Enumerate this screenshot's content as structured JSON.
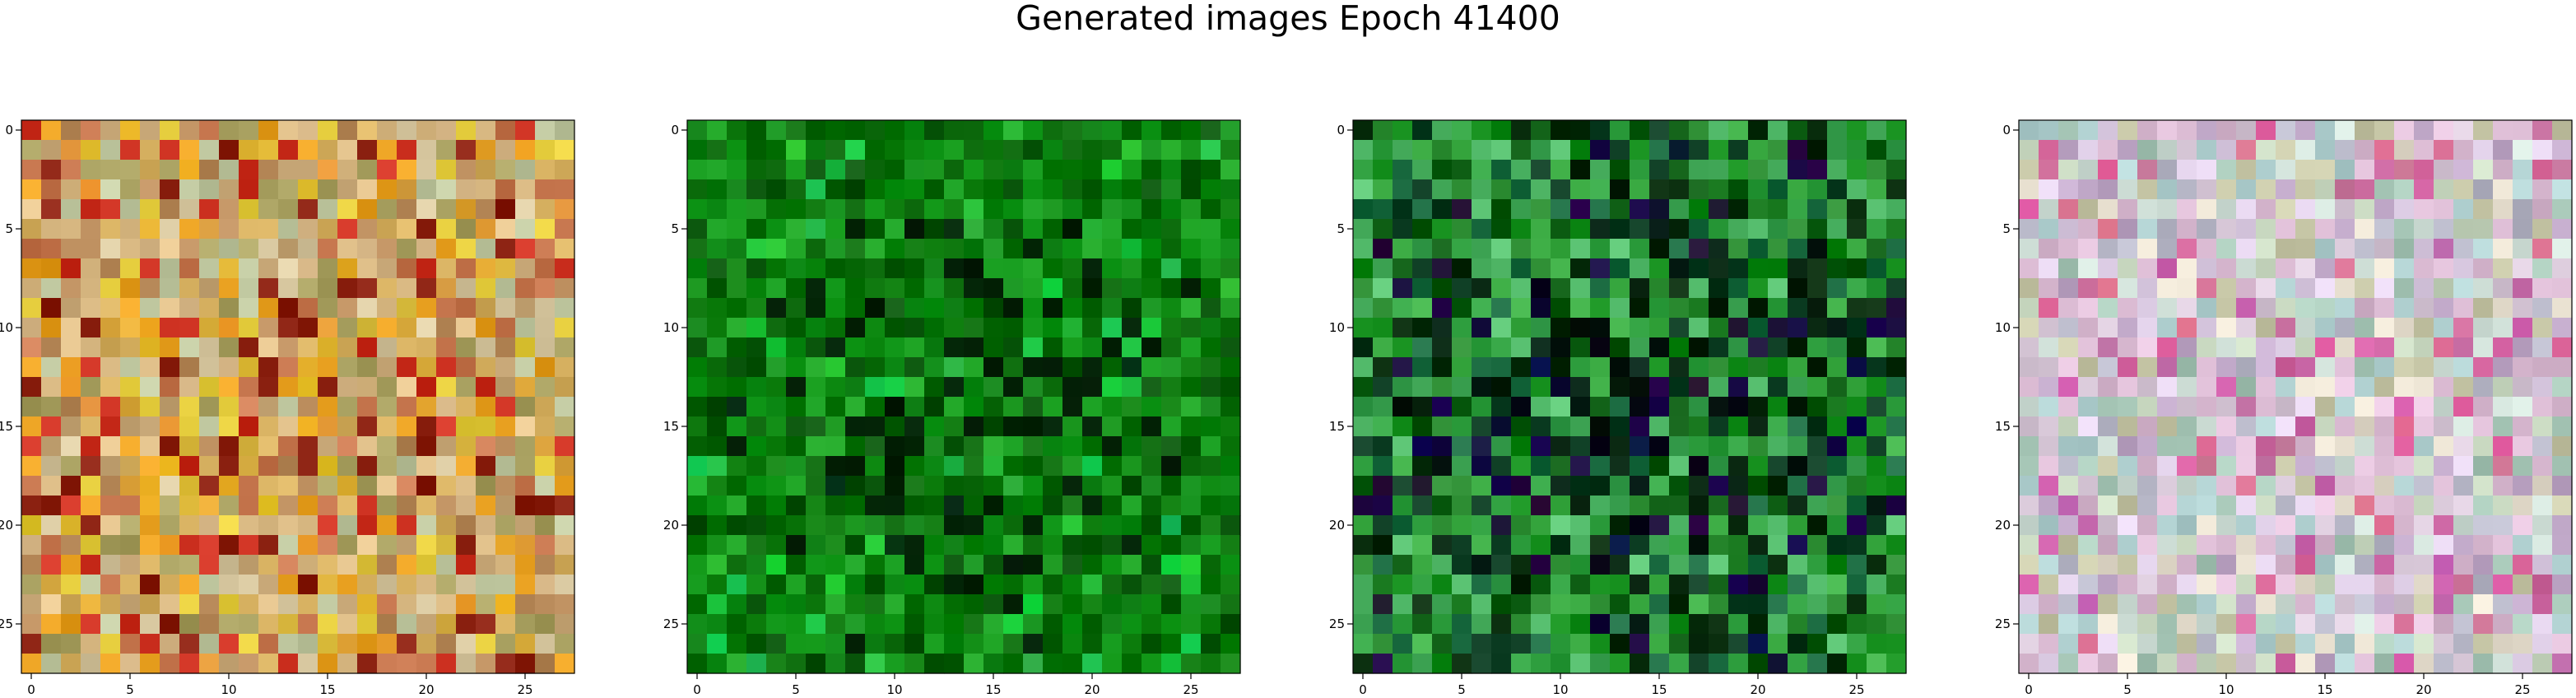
{
  "figure": {
    "title": "Generated images Epoch 41400"
  },
  "chart_data": [
    {
      "type": "heatmap",
      "description_kind": "rgb-image",
      "grid": 28,
      "xlim": [
        -0.5,
        27.5
      ],
      "ylim": [
        27.5,
        -0.5
      ],
      "xticks": [
        0,
        5,
        10,
        15,
        20,
        25
      ],
      "yticks": [
        0,
        5,
        10,
        15,
        20,
        25
      ],
      "palette": [
        "#c8a878",
        "#e0c08a",
        "#b88a5a",
        "#d6b060",
        "#e8a020",
        "#c87850",
        "#d8c8a0",
        "#a8a060",
        "#cc3020",
        "#8a2010",
        "#e8d040",
        "#c0c8a0"
      ],
      "accent": "#e0a830"
    },
    {
      "type": "heatmap",
      "description_kind": "rgb-image",
      "grid": 28,
      "xlim": [
        -0.5,
        27.5
      ],
      "ylim": [
        27.5,
        -0.5
      ],
      "xticks": [
        0,
        5,
        10,
        15,
        20,
        25
      ],
      "yticks": [
        0,
        5,
        10,
        15,
        20,
        25
      ],
      "palette": [
        "#0a7a10",
        "#0e8a12",
        "#067006",
        "#108c18",
        "#046004",
        "#0a6a0a",
        "#149a1c",
        "#0c7c0c",
        "#08540a",
        "#1aa020"
      ],
      "accent": "#20c040"
    },
    {
      "type": "heatmap",
      "description_kind": "rgb-image",
      "grid": 28,
      "xlim": [
        -0.5,
        27.5
      ],
      "ylim": [
        27.5,
        -0.5
      ],
      "xticks": [
        0,
        5,
        10,
        15,
        20,
        25
      ],
      "yticks": [
        0,
        5,
        10,
        15,
        20,
        25
      ],
      "palette": [
        "#2a8a30",
        "#40b048",
        "#108a18",
        "#0a5a10",
        "#062a0a",
        "#58c070",
        "#1a6a40",
        "#30a040",
        "#0a3a20",
        "#3aa050"
      ],
      "accent": "#1a0a40"
    },
    {
      "type": "heatmap",
      "description_kind": "rgb-image",
      "grid": 28,
      "xlim": [
        -0.5,
        27.5
      ],
      "ylim": [
        27.5,
        -0.5
      ],
      "xticks": [
        0,
        5,
        10,
        15,
        20,
        25
      ],
      "yticks": [
        0,
        5,
        10,
        15,
        20,
        25
      ],
      "palette": [
        "#d8c8d8",
        "#c8d8c0",
        "#e0d0e8",
        "#b8b8c8",
        "#d0e0d8",
        "#c0a8c8",
        "#e8e0d0",
        "#a8c8b8",
        "#d8b8d0",
        "#c8c8a8",
        "#b0d0d0",
        "#e0c0d8"
      ],
      "accent": "#d06aa0"
    }
  ]
}
